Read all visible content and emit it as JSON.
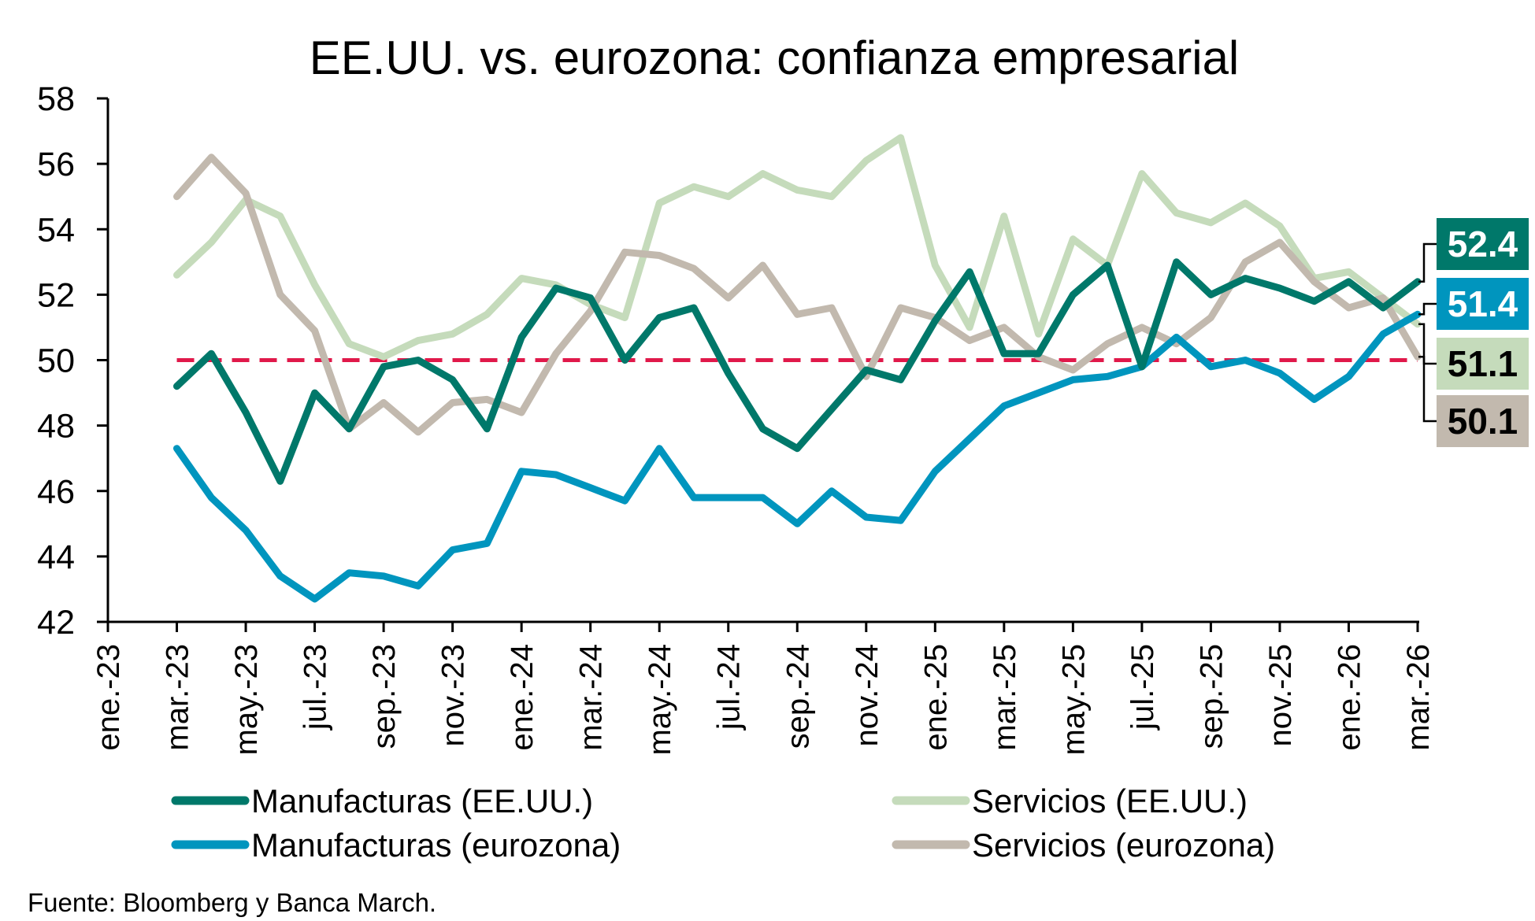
{
  "chart_data": {
    "type": "line",
    "title": "EE.UU. vs. eurozona: confianza empresarial",
    "xlabel": "",
    "ylabel": "",
    "ylim": [
      42,
      58
    ],
    "yticks": [
      42,
      44,
      46,
      48,
      50,
      52,
      54,
      56,
      58
    ],
    "grid": false,
    "reference_line": {
      "value": 50,
      "style": "dashed",
      "color": "#E0194A"
    },
    "x_tick_labels": [
      "ene.-23",
      "mar.-23",
      "may.-23",
      "jul.-23",
      "sep.-23",
      "nov.-23",
      "ene.-24",
      "mar.-24",
      "may.-24",
      "jul.-24",
      "sep.-24",
      "nov.-24",
      "ene.-25",
      "mar.-25",
      "may.-25",
      "jul.-25",
      "sep.-25",
      "nov.-25",
      "ene.-26",
      "mar.-26"
    ],
    "x": [
      "mar.-23",
      "abr.-23",
      "may.-23",
      "jun.-23",
      "jul.-23",
      "ago.-23",
      "sep.-23",
      "oct.-23",
      "nov.-23",
      "dic.-23",
      "ene.-24",
      "feb.-24",
      "mar.-24",
      "abr.-24",
      "may.-24",
      "jun.-24",
      "jul.-24",
      "ago.-24",
      "sep.-24",
      "oct.-24",
      "nov.-24",
      "dic.-24",
      "ene.-25",
      "feb.-25",
      "mar.-25",
      "abr.-25",
      "may.-25",
      "jun.-25",
      "jul.-25",
      "ago.-25",
      "sep.-25",
      "oct.-25",
      "nov.-25",
      "dic.-25",
      "ene.-26",
      "feb.-26",
      "mar.-26"
    ],
    "x_start_month_index": 2,
    "series": [
      {
        "name": "Manufacturas (EE.UU.)",
        "color": "#00786A",
        "values": [
          49.2,
          50.2,
          48.4,
          46.3,
          49.0,
          47.9,
          49.8,
          50.0,
          49.4,
          47.9,
          50.7,
          52.2,
          51.9,
          50.0,
          51.3,
          51.6,
          49.6,
          47.9,
          47.3,
          48.5,
          49.7,
          49.4,
          51.2,
          52.7,
          50.2,
          50.2,
          52.0,
          52.9,
          49.8,
          53.0,
          52.0,
          52.5,
          52.2,
          51.8,
          52.4,
          51.6,
          52.4
        ]
      },
      {
        "name": "Manufacturas (eurozona)",
        "color": "#0095BE",
        "values": [
          47.3,
          45.8,
          44.8,
          43.4,
          42.7,
          43.5,
          43.4,
          43.1,
          44.2,
          44.4,
          46.6,
          46.5,
          46.1,
          45.7,
          47.3,
          45.8,
          45.8,
          45.8,
          45.0,
          46.0,
          45.2,
          45.1,
          46.6,
          47.6,
          48.6,
          49.0,
          49.4,
          49.5,
          49.8,
          50.7,
          49.8,
          50.0,
          49.6,
          48.8,
          49.5,
          50.8,
          51.4
        ]
      },
      {
        "name": "Servicios (EE.UU.)",
        "color": "#C5DBBB",
        "values": [
          52.6,
          53.6,
          54.9,
          54.4,
          52.3,
          50.5,
          50.1,
          50.6,
          50.8,
          51.4,
          52.5,
          52.3,
          51.7,
          51.3,
          54.8,
          55.3,
          55.0,
          55.7,
          55.2,
          55.0,
          56.1,
          56.8,
          52.9,
          51.0,
          54.4,
          50.8,
          53.7,
          52.9,
          55.7,
          54.5,
          54.2,
          54.8,
          54.1,
          52.5,
          52.7,
          51.9,
          51.1
        ]
      },
      {
        "name": "Servicios (eurozona)",
        "color": "#C2B9AE",
        "values": [
          55.0,
          56.2,
          55.1,
          52.0,
          50.9,
          47.9,
          48.7,
          47.8,
          48.7,
          48.8,
          48.4,
          50.2,
          51.5,
          53.3,
          53.2,
          52.8,
          51.9,
          52.9,
          51.4,
          51.6,
          49.5,
          51.6,
          51.3,
          50.6,
          51.0,
          50.1,
          49.7,
          50.5,
          51.0,
          50.5,
          51.3,
          53.0,
          53.6,
          52.4,
          51.6,
          51.9,
          50.1
        ]
      }
    ],
    "end_labels": [
      {
        "series": "Manufacturas (EE.UU.)",
        "text": "52.4",
        "bg": "#00786A",
        "fg": "#FFFFFF"
      },
      {
        "series": "Manufacturas (eurozona)",
        "text": "51.4",
        "bg": "#0095BE",
        "fg": "#FFFFFF"
      },
      {
        "series": "Servicios (EE.UU.)",
        "text": "51.1",
        "bg": "#C5DBBB",
        "fg": "#000000"
      },
      {
        "series": "Servicios (eurozona)",
        "text": "50.1",
        "bg": "#C2B9AE",
        "fg": "#000000"
      }
    ],
    "legend": {
      "placement": "bottom",
      "entries": [
        "Manufacturas (EE.UU.)",
        "Servicios (EE.UU.)",
        "Manufacturas (eurozona)",
        "Servicios (eurozona)"
      ]
    }
  },
  "source": "Fuente: Bloomberg y Banca March."
}
